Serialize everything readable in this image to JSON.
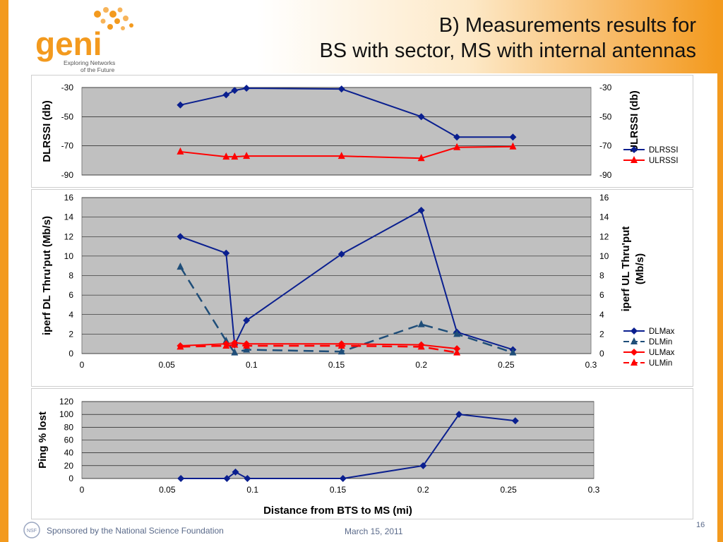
{
  "header": {
    "title_line1": "B)  Measurements results for",
    "title_line2": "BS with sector, MS with internal antennas",
    "logo_text": "geni",
    "logo_tagline1": "Exploring Networks",
    "logo_tagline2": "of the Future"
  },
  "footer": {
    "sponsor": "Sponsored by the National Science Foundation",
    "date": "March 15, 2011",
    "page_number": "16",
    "nsf_logo_text": "NSF"
  },
  "colors": {
    "accent": "#f39a1e",
    "navy": "#0a1f8f",
    "red": "#ff0000",
    "dash_blue": "#1f4e79",
    "plot_bg": "#c0c0c0"
  },
  "chart_data": [
    {
      "type": "line",
      "ylabel": "DLRSSI (db)",
      "y2label": "ULRSSI (db)",
      "ylim": [
        -90,
        -30
      ],
      "yticks": [
        -30,
        -50,
        -70,
        -90
      ],
      "xlim": [
        0,
        0.3
      ],
      "grid": true,
      "legend_position": "right",
      "series": [
        {
          "name": "DLRSSI",
          "color": "#0a1f8f",
          "marker": "diamond",
          "dash": false,
          "x": [
            0.058,
            0.085,
            0.09,
            0.097,
            0.153,
            0.2,
            0.221,
            0.254
          ],
          "y": [
            -42,
            -35,
            -32,
            -30.5,
            -31,
            -50,
            -64,
            -64
          ]
        },
        {
          "name": "ULRSSI",
          "color": "#ff0000",
          "marker": "triangle",
          "dash": false,
          "x": [
            0.058,
            0.085,
            0.09,
            0.097,
            0.153,
            0.2,
            0.221,
            0.254
          ],
          "y": [
            -74,
            -77.5,
            -77.5,
            -77,
            -77,
            -78.5,
            -71,
            -70.5
          ]
        }
      ]
    },
    {
      "type": "line",
      "ylabel": "iperf DL Thru'put  (Mb/s)",
      "y2label_line1": "iperf UL Thru'put",
      "y2label_line2": "(Mb/s)",
      "ylim": [
        0,
        16
      ],
      "yticks": [
        0,
        2,
        4,
        6,
        8,
        10,
        12,
        14,
        16
      ],
      "xlim": [
        0,
        0.3
      ],
      "xticks": [
        "0",
        "0.05",
        "0.1",
        "0.15",
        "0.2",
        "0.25",
        "0.3"
      ],
      "grid": true,
      "legend_position": "right",
      "series": [
        {
          "name": "DLMax",
          "color": "#0a1f8f",
          "marker": "diamond",
          "dash": false,
          "x": [
            0.058,
            0.085,
            0.09,
            0.097,
            0.153,
            0.2,
            0.221,
            0.254
          ],
          "y": [
            12,
            10.3,
            0.9,
            3.4,
            10.2,
            14.7,
            2.2,
            0.4
          ]
        },
        {
          "name": "DLMin",
          "color": "#1f4e79",
          "marker": "triangle",
          "dash": true,
          "x": [
            0.058,
            0.085,
            0.09,
            0.097,
            0.153,
            0.2,
            0.221,
            0.254
          ],
          "y": [
            8.9,
            1.3,
            0.1,
            0.4,
            0.2,
            3.0,
            2.0,
            0.1
          ]
        },
        {
          "name": "ULMax",
          "color": "#ff0000",
          "marker": "diamond",
          "dash": false,
          "x": [
            0.058,
            0.085,
            0.09,
            0.097,
            0.153,
            0.2,
            0.221
          ],
          "y": [
            0.8,
            1.0,
            1.1,
            1.0,
            1.0,
            0.9,
            0.5
          ]
        },
        {
          "name": "ULMin",
          "color": "#ff0000",
          "marker": "triangle",
          "dash": true,
          "x": [
            0.058,
            0.085,
            0.09,
            0.097,
            0.153,
            0.2,
            0.221
          ],
          "y": [
            0.7,
            0.8,
            0.9,
            0.8,
            0.8,
            0.7,
            0.1
          ]
        }
      ]
    },
    {
      "type": "line",
      "ylabel": "Ping % lost",
      "xlabel": "Distance from BTS to MS  (mi)",
      "ylim": [
        0,
        120
      ],
      "yticks": [
        0,
        20,
        40,
        60,
        80,
        100,
        120
      ],
      "xlim": [
        0,
        0.3
      ],
      "xticks": [
        "0",
        "0.05",
        "0.1",
        "0.15",
        "0.2",
        "0.25",
        "0.3"
      ],
      "grid": true,
      "series": [
        {
          "name": "Ping % lost",
          "color": "#0a1f8f",
          "marker": "diamond",
          "dash": false,
          "x": [
            0.058,
            0.085,
            0.09,
            0.097,
            0.153,
            0.2,
            0.221,
            0.254
          ],
          "y": [
            0,
            0,
            10,
            0,
            0,
            20,
            100,
            90
          ]
        }
      ]
    }
  ]
}
